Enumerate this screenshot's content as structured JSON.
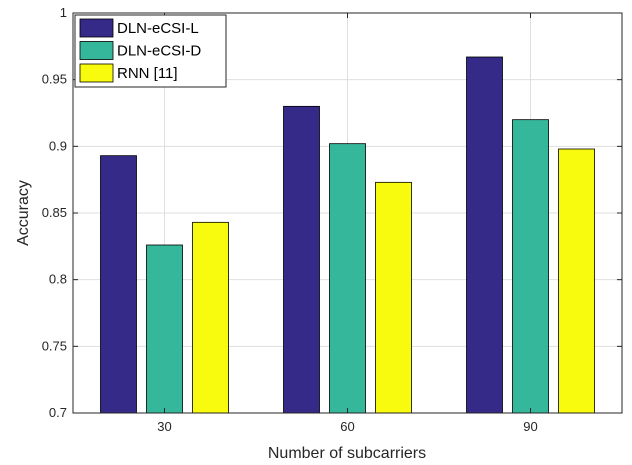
{
  "chart_data": {
    "type": "bar",
    "title": "",
    "xlabel": "Number of subcarriers",
    "ylabel": "Accuracy",
    "categories": [
      "30",
      "60",
      "90"
    ],
    "ylim": [
      0.7,
      1
    ],
    "yticks": [
      "0.7",
      "0.75",
      "0.8",
      "0.85",
      "0.9",
      "0.95",
      "1"
    ],
    "grid": true,
    "legend_position": "top-left",
    "series": [
      {
        "name": "DLN-eCSI-L",
        "color": "#352a87",
        "values": [
          0.893,
          0.93,
          0.967
        ]
      },
      {
        "name": "DLN-eCSI-D",
        "color": "#35b79b",
        "values": [
          0.826,
          0.902,
          0.92
        ]
      },
      {
        "name": "RNN [11]",
        "color": "#f9fb0e",
        "values": [
          0.843,
          0.873,
          0.898
        ]
      }
    ]
  }
}
